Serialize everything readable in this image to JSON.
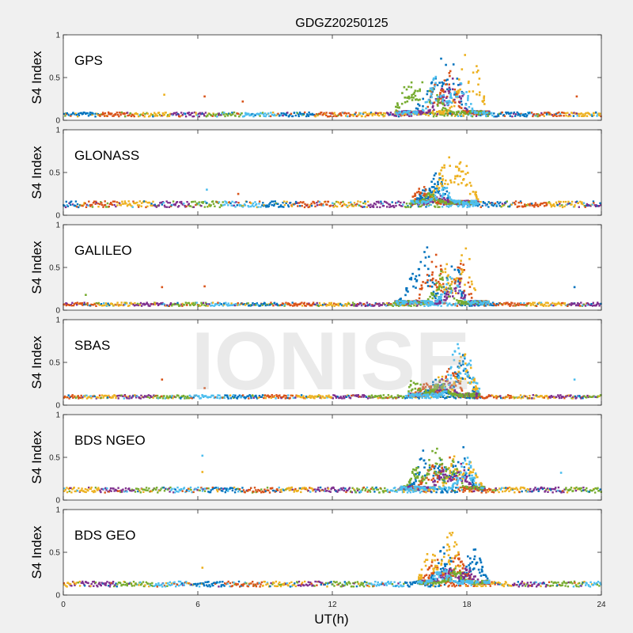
{
  "chart_data": {
    "type": "scatter",
    "title": "GDGZ20250125",
    "xlabel": "UT(h)",
    "xlim": [
      0,
      24
    ],
    "x_ticks": [
      "0",
      "6",
      "12",
      "18",
      "24"
    ],
    "watermark": "IONISE",
    "colors": {
      "blue": "#0072BD",
      "orange": "#D95319",
      "yellow": "#EDB120",
      "purple": "#7E2F8E",
      "green": "#77AC30",
      "cyan": "#4DBEEE",
      "panel_bg": "#ffffff",
      "figure_bg": "#f0f0f0"
    },
    "panels": [
      {
        "label": "GPS",
        "ylabel": "S4 Index",
        "ylim": [
          0,
          1
        ],
        "y_ticks": [
          "0",
          "0.5",
          "1"
        ],
        "baseline": 0.07,
        "baseline_jitter": 0.025,
        "disturbance_window": [
          14.8,
          19.0
        ],
        "series": [
          {
            "color": "blue",
            "peaks": [
              {
                "x": 16.9,
                "y": 0.68
              },
              {
                "x": 17.4,
                "y": 0.62
              },
              {
                "x": 16.3,
                "y": 0.45
              }
            ]
          },
          {
            "color": "orange",
            "peaks": [
              {
                "x": 17.2,
                "y": 0.55
              },
              {
                "x": 16.6,
                "y": 0.4
              }
            ]
          },
          {
            "color": "yellow",
            "peaks": [
              {
                "x": 18.0,
                "y": 0.75
              },
              {
                "x": 18.4,
                "y": 0.6
              },
              {
                "x": 17.8,
                "y": 0.48
              }
            ]
          },
          {
            "color": "purple",
            "peaks": [
              {
                "x": 17.5,
                "y": 0.5
              },
              {
                "x": 16.9,
                "y": 0.35
              }
            ]
          },
          {
            "color": "green",
            "peaks": [
              {
                "x": 15.4,
                "y": 0.47
              },
              {
                "x": 16.0,
                "y": 0.42
              },
              {
                "x": 16.5,
                "y": 0.38
              }
            ]
          },
          {
            "color": "cyan",
            "peaks": [
              {
                "x": 16.6,
                "y": 0.48
              },
              {
                "x": 17.7,
                "y": 0.45
              },
              {
                "x": 17.2,
                "y": 0.35
              }
            ]
          }
        ],
        "outliers": [
          {
            "x": 4.5,
            "y": 0.3,
            "c": "yellow"
          },
          {
            "x": 6.3,
            "y": 0.28,
            "c": "orange"
          },
          {
            "x": 8.0,
            "y": 0.22,
            "c": "orange"
          },
          {
            "x": 22.9,
            "y": 0.28,
            "c": "orange"
          }
        ]
      },
      {
        "label": "GLONASS",
        "ylabel": "S4 Index",
        "ylim": [
          0,
          1
        ],
        "y_ticks": [
          "0",
          "0.5",
          "1"
        ],
        "baseline": 0.13,
        "baseline_jitter": 0.035,
        "disturbance_window": [
          15.5,
          18.5
        ],
        "series": [
          {
            "color": "blue",
            "peaks": [
              {
                "x": 16.7,
                "y": 0.48
              },
              {
                "x": 16.2,
                "y": 0.3
              }
            ]
          },
          {
            "color": "orange",
            "peaks": [
              {
                "x": 16.0,
                "y": 0.33
              },
              {
                "x": 15.7,
                "y": 0.28
              }
            ]
          },
          {
            "color": "yellow",
            "peaks": [
              {
                "x": 17.3,
                "y": 0.72
              },
              {
                "x": 17.8,
                "y": 0.62
              },
              {
                "x": 17.0,
                "y": 0.55
              },
              {
                "x": 18.0,
                "y": 0.45
              }
            ]
          },
          {
            "color": "purple",
            "peaks": [
              {
                "x": 16.8,
                "y": 0.22
              }
            ]
          },
          {
            "color": "green",
            "peaks": [
              {
                "x": 16.4,
                "y": 0.25
              }
            ]
          },
          {
            "color": "cyan",
            "peaks": [
              {
                "x": 16.9,
                "y": 0.35
              }
            ]
          }
        ],
        "outliers": [
          {
            "x": 6.4,
            "y": 0.3,
            "c": "cyan"
          },
          {
            "x": 7.8,
            "y": 0.25,
            "c": "orange"
          }
        ]
      },
      {
        "label": "GALILEO",
        "ylabel": "S4 Index",
        "ylim": [
          0,
          1
        ],
        "y_ticks": [
          "0",
          "0.5",
          "1"
        ],
        "baseline": 0.07,
        "baseline_jitter": 0.02,
        "disturbance_window": [
          14.8,
          19.0
        ],
        "series": [
          {
            "color": "blue",
            "peaks": [
              {
                "x": 16.1,
                "y": 0.75
              },
              {
                "x": 17.4,
                "y": 0.6
              },
              {
                "x": 15.6,
                "y": 0.42
              }
            ]
          },
          {
            "color": "orange",
            "peaks": [
              {
                "x": 16.6,
                "y": 0.62
              },
              {
                "x": 17.7,
                "y": 0.55
              },
              {
                "x": 16.3,
                "y": 0.45
              }
            ]
          },
          {
            "color": "yellow",
            "peaks": [
              {
                "x": 17.9,
                "y": 0.68
              },
              {
                "x": 17.1,
                "y": 0.5
              }
            ]
          },
          {
            "color": "purple",
            "peaks": [
              {
                "x": 17.5,
                "y": 0.35
              }
            ]
          },
          {
            "color": "green",
            "peaks": [
              {
                "x": 16.9,
                "y": 0.45
              }
            ]
          },
          {
            "color": "cyan",
            "peaks": [
              {
                "x": 17.3,
                "y": 0.4
              }
            ]
          }
        ],
        "outliers": [
          {
            "x": 4.4,
            "y": 0.27,
            "c": "orange"
          },
          {
            "x": 6.3,
            "y": 0.28,
            "c": "orange"
          },
          {
            "x": 1.0,
            "y": 0.18,
            "c": "green"
          },
          {
            "x": 22.8,
            "y": 0.27,
            "c": "blue"
          }
        ]
      },
      {
        "label": "SBAS",
        "ylabel": "S4 Index",
        "ylim": [
          0,
          1
        ],
        "y_ticks": [
          "0",
          "0.5",
          "1"
        ],
        "baseline": 0.1,
        "baseline_jitter": 0.02,
        "disturbance_window": [
          15.4,
          18.6
        ],
        "series": [
          {
            "color": "blue",
            "peaks": [
              {
                "x": 17.8,
                "y": 0.55
              },
              {
                "x": 16.6,
                "y": 0.3
              }
            ]
          },
          {
            "color": "orange",
            "peaks": [
              {
                "x": 17.3,
                "y": 0.45
              },
              {
                "x": 16.2,
                "y": 0.25
              }
            ]
          },
          {
            "color": "yellow",
            "peaks": [
              {
                "x": 17.9,
                "y": 0.6
              },
              {
                "x": 16.9,
                "y": 0.35
              }
            ]
          },
          {
            "color": "purple",
            "peaks": [
              {
                "x": 17.0,
                "y": 0.3
              }
            ]
          },
          {
            "color": "green",
            "peaks": [
              {
                "x": 15.7,
                "y": 0.32
              },
              {
                "x": 16.8,
                "y": 0.28
              }
            ]
          },
          {
            "color": "cyan",
            "peaks": [
              {
                "x": 17.6,
                "y": 0.7
              },
              {
                "x": 18.0,
                "y": 0.55
              }
            ]
          }
        ],
        "outliers": [
          {
            "x": 4.4,
            "y": 0.3,
            "c": "orange"
          },
          {
            "x": 6.3,
            "y": 0.2,
            "c": "orange"
          },
          {
            "x": 22.8,
            "y": 0.3,
            "c": "cyan"
          }
        ]
      },
      {
        "label": "BDS NGEO",
        "ylabel": "S4 Index",
        "ylim": [
          0,
          1
        ],
        "y_ticks": [
          "0",
          "0.5",
          "1"
        ],
        "baseline": 0.12,
        "baseline_jitter": 0.03,
        "disturbance_window": [
          15.0,
          18.8
        ],
        "series": [
          {
            "color": "blue",
            "peaks": [
              {
                "x": 17.7,
                "y": 0.68
              },
              {
                "x": 16.1,
                "y": 0.55
              },
              {
                "x": 16.8,
                "y": 0.45
              }
            ]
          },
          {
            "color": "orange",
            "peaks": [
              {
                "x": 17.1,
                "y": 0.5
              },
              {
                "x": 16.4,
                "y": 0.4
              }
            ]
          },
          {
            "color": "yellow",
            "peaks": [
              {
                "x": 17.4,
                "y": 0.48
              },
              {
                "x": 18.1,
                "y": 0.42
              }
            ]
          },
          {
            "color": "purple",
            "peaks": [
              {
                "x": 17.6,
                "y": 0.45
              },
              {
                "x": 16.9,
                "y": 0.35
              }
            ]
          },
          {
            "color": "green",
            "peaks": [
              {
                "x": 16.6,
                "y": 0.6
              },
              {
                "x": 17.3,
                "y": 0.45
              },
              {
                "x": 15.8,
                "y": 0.38
              }
            ]
          },
          {
            "color": "cyan",
            "peaks": [
              {
                "x": 18.0,
                "y": 0.5
              }
            ]
          }
        ],
        "outliers": [
          {
            "x": 6.2,
            "y": 0.52,
            "c": "cyan"
          },
          {
            "x": 6.2,
            "y": 0.33,
            "c": "yellow"
          },
          {
            "x": 22.2,
            "y": 0.32,
            "c": "cyan"
          }
        ]
      },
      {
        "label": "BDS GEO",
        "ylabel": "S4 Index",
        "ylim": [
          0,
          1
        ],
        "y_ticks": [
          "0",
          "0.5",
          "1"
        ],
        "baseline": 0.13,
        "baseline_jitter": 0.03,
        "disturbance_window": [
          15.8,
          19.0
        ],
        "series": [
          {
            "color": "blue",
            "peaks": [
              {
                "x": 17.0,
                "y": 0.55
              },
              {
                "x": 18.3,
                "y": 0.55
              }
            ]
          },
          {
            "color": "orange",
            "peaks": [
              {
                "x": 16.6,
                "y": 0.4
              },
              {
                "x": 17.6,
                "y": 0.45
              }
            ]
          },
          {
            "color": "yellow",
            "peaks": [
              {
                "x": 17.3,
                "y": 0.72
              },
              {
                "x": 16.4,
                "y": 0.5
              }
            ]
          },
          {
            "color": "purple",
            "peaks": [
              {
                "x": 17.2,
                "y": 0.35
              },
              {
                "x": 18.0,
                "y": 0.3
              }
            ]
          },
          {
            "color": "green",
            "peaks": [
              {
                "x": 17.5,
                "y": 0.3
              }
            ]
          },
          {
            "color": "cyan",
            "peaks": [
              {
                "x": 16.9,
                "y": 0.3
              }
            ]
          }
        ],
        "outliers": [
          {
            "x": 6.2,
            "y": 0.32,
            "c": "yellow"
          }
        ]
      }
    ]
  }
}
